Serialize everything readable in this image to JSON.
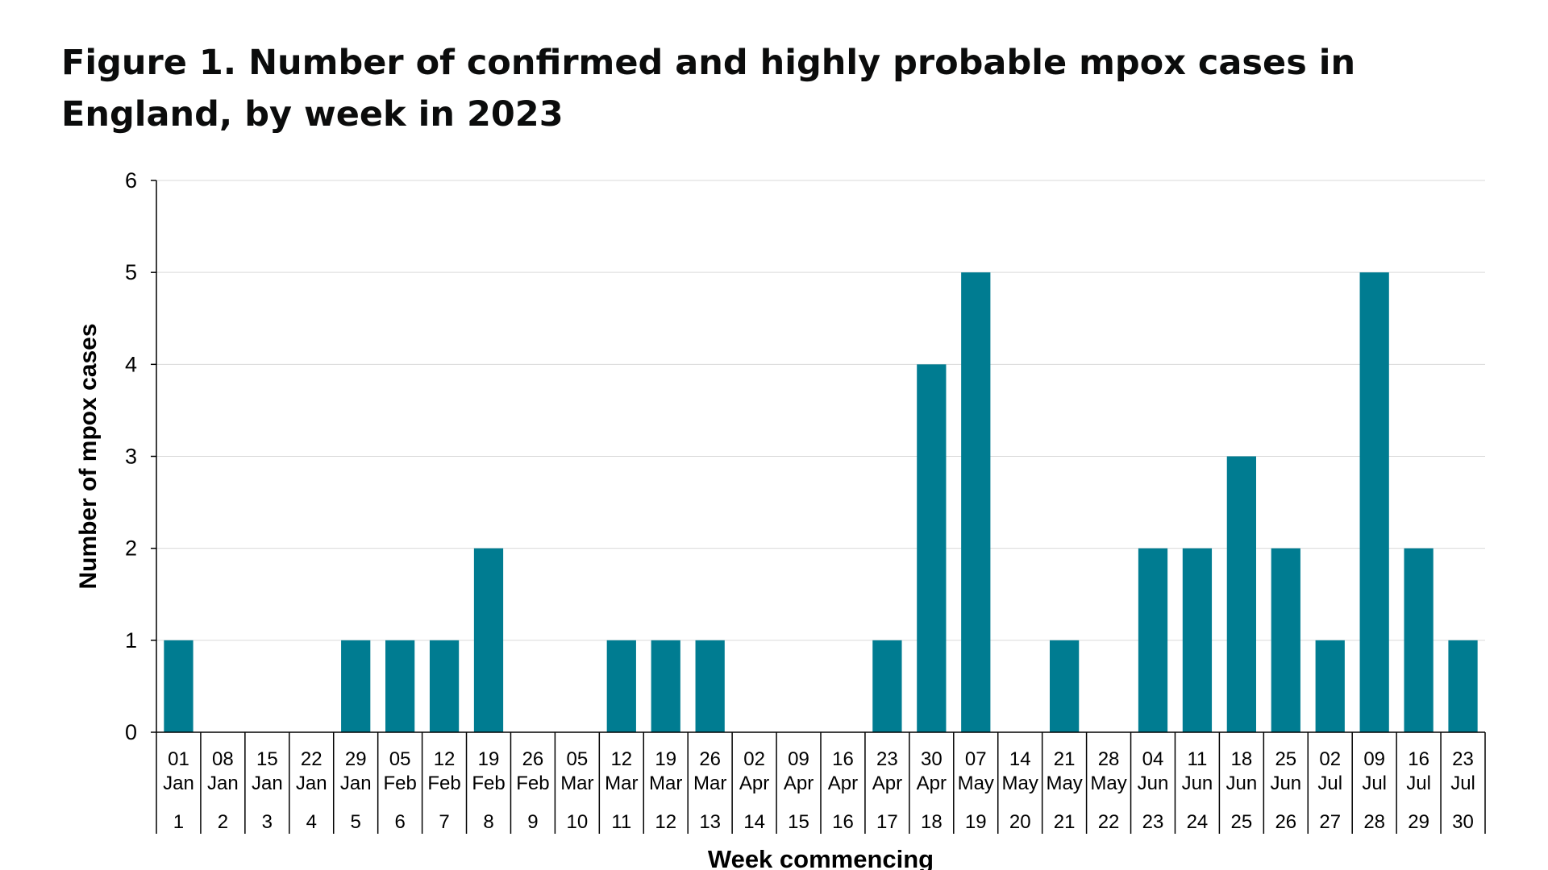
{
  "title": "Figure 1. Number of confirmed and highly probable mpox cases in England, by week in 2023",
  "colors": {
    "bar": "#007C91",
    "grid": "#d9d9d9",
    "axis": "#000000"
  },
  "chart_data": {
    "type": "bar",
    "title": "Figure 1. Number of confirmed and highly probable mpox cases in England, by week in 2023",
    "xlabel": "Week commencing",
    "ylabel": "Number of mpox cases",
    "ylim": [
      0,
      6
    ],
    "yticks": [
      "0",
      "1",
      "2",
      "3",
      "4",
      "5",
      "6"
    ],
    "grid": true,
    "categories": [
      {
        "day": "01",
        "month": "Jan",
        "week": "1"
      },
      {
        "day": "08",
        "month": "Jan",
        "week": "2"
      },
      {
        "day": "15",
        "month": "Jan",
        "week": "3"
      },
      {
        "day": "22",
        "month": "Jan",
        "week": "4"
      },
      {
        "day": "29",
        "month": "Jan",
        "week": "5"
      },
      {
        "day": "05",
        "month": "Feb",
        "week": "6"
      },
      {
        "day": "12",
        "month": "Feb",
        "week": "7"
      },
      {
        "day": "19",
        "month": "Feb",
        "week": "8"
      },
      {
        "day": "26",
        "month": "Feb",
        "week": "9"
      },
      {
        "day": "05",
        "month": "Mar",
        "week": "10"
      },
      {
        "day": "12",
        "month": "Mar",
        "week": "11"
      },
      {
        "day": "19",
        "month": "Mar",
        "week": "12"
      },
      {
        "day": "26",
        "month": "Mar",
        "week": "13"
      },
      {
        "day": "02",
        "month": "Apr",
        "week": "14"
      },
      {
        "day": "09",
        "month": "Apr",
        "week": "15"
      },
      {
        "day": "16",
        "month": "Apr",
        "week": "16"
      },
      {
        "day": "23",
        "month": "Apr",
        "week": "17"
      },
      {
        "day": "30",
        "month": "Apr",
        "week": "18"
      },
      {
        "day": "07",
        "month": "May",
        "week": "19"
      },
      {
        "day": "14",
        "month": "May",
        "week": "20"
      },
      {
        "day": "21",
        "month": "May",
        "week": "21"
      },
      {
        "day": "28",
        "month": "May",
        "week": "22"
      },
      {
        "day": "04",
        "month": "Jun",
        "week": "23"
      },
      {
        "day": "11",
        "month": "Jun",
        "week": "24"
      },
      {
        "day": "18",
        "month": "Jun",
        "week": "25"
      },
      {
        "day": "25",
        "month": "Jun",
        "week": "26"
      },
      {
        "day": "02",
        "month": "Jul",
        "week": "27"
      },
      {
        "day": "09",
        "month": "Jul",
        "week": "28"
      },
      {
        "day": "16",
        "month": "Jul",
        "week": "29"
      },
      {
        "day": "23",
        "month": "Jul",
        "week": "30"
      }
    ],
    "values": [
      1,
      0,
      0,
      0,
      1,
      1,
      1,
      2,
      0,
      0,
      1,
      1,
      1,
      0,
      0,
      0,
      1,
      4,
      5,
      0,
      1,
      0,
      2,
      2,
      3,
      2,
      1,
      5,
      2,
      1
    ]
  }
}
